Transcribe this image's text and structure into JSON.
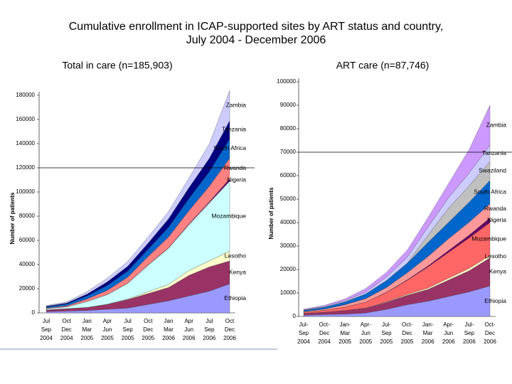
{
  "slide_title": [
    "Cumulative enrollment in ICAP-supported sites by ART status and country,",
    "July 2004 - December 2006"
  ],
  "chart_data": [
    {
      "type": "stacked-area",
      "title": "Total in care (n=185,903)",
      "y_label": "Number of patients",
      "categories": [
        "Jul\nSep\n2004",
        "Oct\nDec\n2004",
        "Jan\nMar\n2005",
        "Apr\nJun\n2005",
        "Jul\nSep\n2005",
        "Oct\nDec\n2005",
        "Jan\nMar\n2006",
        "Apr\nJun\n2006",
        "Jul\nSep\n2006",
        "Oct\nDec\n2006"
      ],
      "ylim": [
        0,
        180000
      ],
      "yticks": [
        0,
        20000,
        40000,
        60000,
        80000,
        100000,
        120000,
        140000,
        160000,
        180000
      ],
      "hline": 120000,
      "series": [
        {
          "name": "Ethiopia",
          "color": "#9999ff",
          "values": [
            1000,
            1500,
            2000,
            3000,
            4000,
            7000,
            10000,
            14000,
            18000,
            24000
          ]
        },
        {
          "name": "Kenya",
          "color": "#993366",
          "values": [
            1500,
            2000,
            2500,
            4000,
            7000,
            9000,
            11000,
            17000,
            20000,
            19000
          ]
        },
        {
          "name": "Lesotho",
          "color": "#ffffcc",
          "values": [
            0,
            0,
            0,
            200,
            500,
            1500,
            2500,
            4000,
            5000,
            8000
          ]
        },
        {
          "name": "Mozambique",
          "color": "#ccffff",
          "values": [
            1000,
            1500,
            5000,
            8000,
            13000,
            22000,
            30000,
            38000,
            48000,
            58000
          ]
        },
        {
          "name": "Nigeria",
          "color": "#660066",
          "values": [
            0,
            0,
            0,
            0,
            100,
            200,
            300,
            500,
            800,
            2000
          ]
        },
        {
          "name": "Rwanda",
          "color": "#ff8080",
          "values": [
            500,
            800,
            2000,
            3500,
            5000,
            7000,
            9000,
            11000,
            13000,
            17000
          ]
        },
        {
          "name": "South Africa",
          "color": "#0066cc",
          "values": [
            1000,
            1500,
            2500,
            4000,
            5000,
            6000,
            8000,
            10000,
            12000,
            16000
          ]
        },
        {
          "name": "Tanzania",
          "color": "#000080",
          "values": [
            500,
            800,
            1500,
            3000,
            4000,
            5000,
            7000,
            9000,
            11000,
            15000
          ]
        },
        {
          "name": "Zambia",
          "color": "#ccccff",
          "values": [
            500,
            1000,
            2000,
            3000,
            4000,
            5000,
            6000,
            8000,
            12000,
            25000
          ]
        }
      ]
    },
    {
      "type": "stacked-area",
      "title": "ART care (n=87,746)",
      "y_label": "Number of patients",
      "categories": [
        "Jul-\nSep\n2004",
        "Oct-\nDec\n2004",
        "Jan-\nMar\n2005",
        "Apr-\nJun\n2005",
        "Jul-\nSep\n2005",
        "Oct-\nDec\n2005",
        "Jan-\nMar\n2006",
        "Apr-\nJun\n2006",
        "Jul-\nSep\n2006",
        "Oct-\nDec\n2006"
      ],
      "ylim": [
        0,
        100000
      ],
      "yticks": [
        0,
        10000,
        20000,
        30000,
        40000,
        50000,
        60000,
        70000,
        80000,
        90000,
        100000
      ],
      "hline": 70000,
      "series": [
        {
          "name": "Ethiopia",
          "color": "#9999ff",
          "values": [
            500,
            800,
            1000,
            1500,
            3000,
            5000,
            6500,
            8500,
            10500,
            13000
          ]
        },
        {
          "name": "Kenya",
          "color": "#993366",
          "values": [
            800,
            1000,
            1500,
            2000,
            3000,
            4000,
            5000,
            7000,
            9000,
            12000
          ]
        },
        {
          "name": "Lesotho",
          "color": "#ffffcc",
          "values": [
            0,
            0,
            0,
            100,
            200,
            400,
            600,
            800,
            1000,
            1000
          ]
        },
        {
          "name": "Mozambique",
          "color": "#ff6666",
          "values": [
            500,
            800,
            1500,
            2500,
            4000,
            6000,
            9000,
            11000,
            13000,
            14000
          ]
        },
        {
          "name": "Nigeria",
          "color": "#660066",
          "values": [
            0,
            0,
            0,
            0,
            100,
            200,
            400,
            800,
            1200,
            2000
          ]
        },
        {
          "name": "Rwanda",
          "color": "#ff9999",
          "values": [
            300,
            500,
            1000,
            1500,
            2000,
            3000,
            4000,
            5000,
            5500,
            6000
          ]
        },
        {
          "name": "South Africa",
          "color": "#0066cc",
          "values": [
            500,
            800,
            1200,
            2000,
            3000,
            4000,
            6000,
            7000,
            8500,
            10000
          ]
        },
        {
          "name": "Swaziland",
          "color": "#c0c0c0",
          "values": [
            0,
            0,
            0,
            0,
            0,
            100,
            3000,
            6000,
            7000,
            8000
          ]
        },
        {
          "name": "Tanzania",
          "color": "#ccccff",
          "values": [
            200,
            300,
            500,
            800,
            1500,
            2500,
            3500,
            4500,
            5500,
            7000
          ]
        },
        {
          "name": "Zambia",
          "color": "#cc99ff",
          "values": [
            300,
            500,
            800,
            1500,
            2000,
            3000,
            4000,
            6000,
            10000,
            17000
          ]
        }
      ]
    }
  ]
}
